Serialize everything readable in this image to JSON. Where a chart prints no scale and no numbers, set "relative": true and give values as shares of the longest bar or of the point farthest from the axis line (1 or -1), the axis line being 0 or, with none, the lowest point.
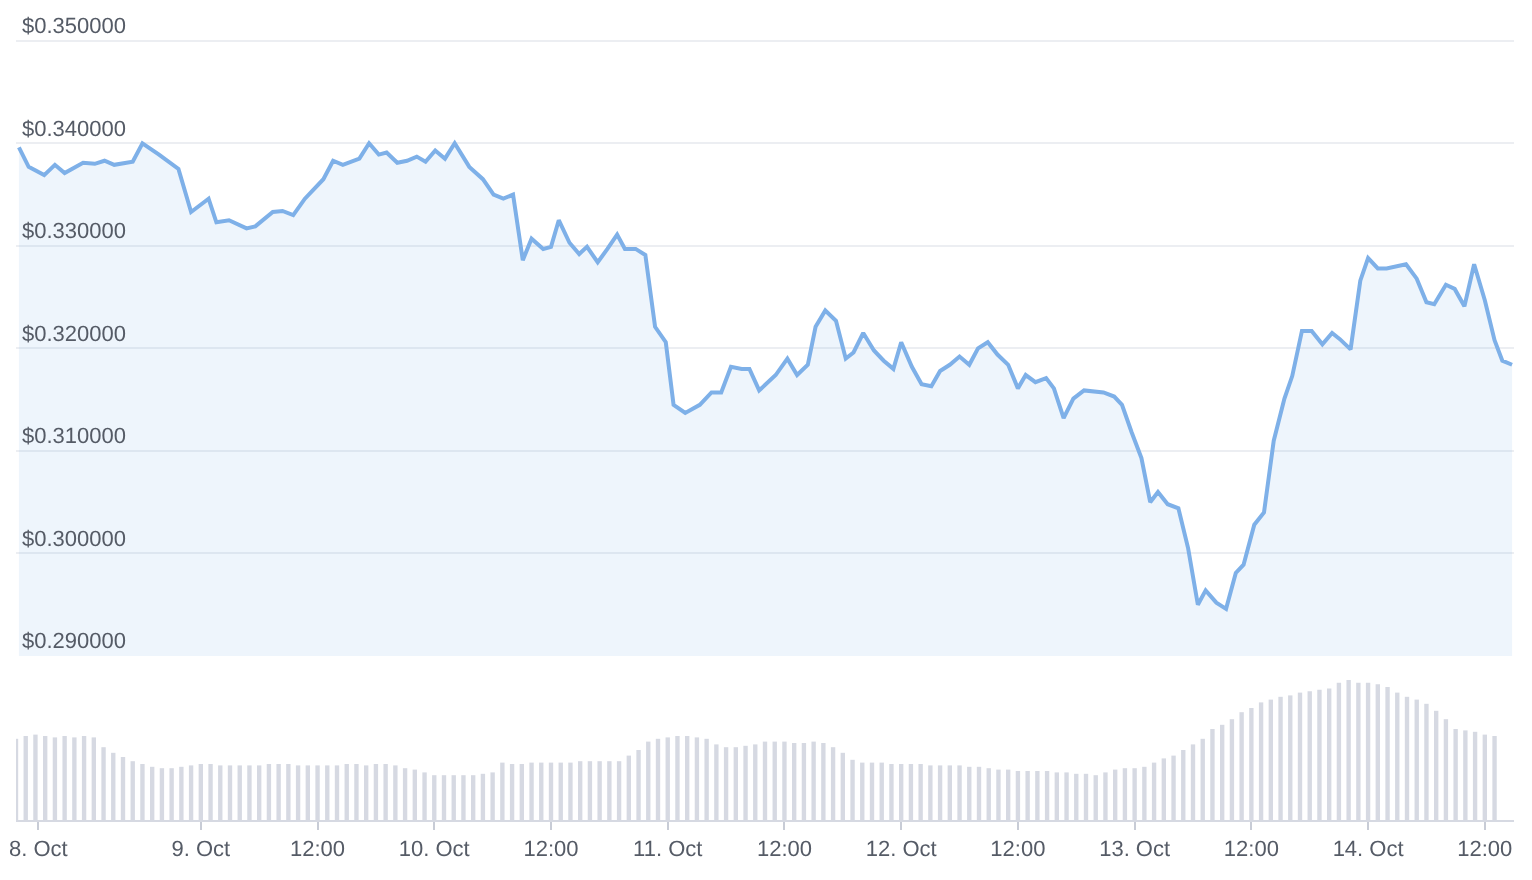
{
  "chart_data": [
    {
      "type": "area",
      "color": "#7eb0e8",
      "grid": "y",
      "tick_labels": "y",
      "x": [
        "--10-08T05:18",
        "--10-08T06:18",
        "--10-08T07:54",
        "--10-08T09:00",
        "--10-08T10:00",
        "--10-08T11:54",
        "--10-08T13:06",
        "--10-08T14:06",
        "--10-08T15:06",
        "--10-08T17:00",
        "--10-08T18:00",
        "--10-08T19:42",
        "--10-08T21:42",
        "--10-08T23:00",
        "--10-09T00:48",
        "--10-09T01:36",
        "--10-09T02:54",
        "--10-09T04:42",
        "--10-09T05:36",
        "--10-09T07:24",
        "--10-09T08:24",
        "--10-09T09:30",
        "--10-09T10:42",
        "--10-09T12:36",
        "--10-09T13:36",
        "--10-09T14:36",
        "--10-09T16:18",
        "--10-09T17:18",
        "--10-09T18:18",
        "--10-09T19:06",
        "--10-09T20:12",
        "--10-09T21:12",
        "--10-09T22:12",
        "--10-09T23:06",
        "--10-10T00:06",
        "--10-10T01:06",
        "--10-10T02:06",
        "--10-10T03:36",
        "--10-10T05:00",
        "--10-10T06:06",
        "--10-10T07:06",
        "--10-10T08:06",
        "--10-10T09:06",
        "--10-10T10:00",
        "--10-10T11:12",
        "--10-10T12:00",
        "--10-10T12:48",
        "--10-10T13:54",
        "--10-10T14:54",
        "--10-10T15:42",
        "--10-10T16:48",
        "--10-10T17:48",
        "--10-10T18:48",
        "--10-10T19:36",
        "--10-10T20:42",
        "--10-10T21:42",
        "--10-10T22:42",
        "--10-10T23:48",
        "--10-11T00:36",
        "--10-11T01:48",
        "--10-11T03:18",
        "--10-11T04:30",
        "--10-11T05:30",
        "--10-11T06:30",
        "--10-11T07:36",
        "--10-11T08:24",
        "--10-11T09:24",
        "--10-11T11:06",
        "--10-11T12:18",
        "--10-11T13:18",
        "--10-11T14:24",
        "--10-11T15:12",
        "--10-11T16:12",
        "--10-11T17:18",
        "--10-11T18:18",
        "--10-11T19:06",
        "--10-11T20:06",
        "--10-11T21:12",
        "--10-11T22:12",
        "--10-11T23:12",
        "--10-12T00:00",
        "--10-12T01:06",
        "--10-12T02:06",
        "--10-12T03:06",
        "--10-12T04:00",
        "--10-12T05:00",
        "--10-12T06:00",
        "--10-12T07:00",
        "--10-12T07:54",
        "--10-12T08:54",
        "--10-12T09:54",
        "--10-12T11:00",
        "--10-12T12:00",
        "--10-12T12:48",
        "--10-12T13:48",
        "--10-12T14:54",
        "--10-12T15:42",
        "--10-12T16:42",
        "--10-12T17:42",
        "--10-12T18:48",
        "--10-12T20:48",
        "--10-12T21:54",
        "--10-12T22:42",
        "--10-12T23:42",
        "--10-13T00:42",
        "--10-13T01:36",
        "--10-13T02:24",
        "--10-13T03:24",
        "--10-13T04:30",
        "--10-13T05:30",
        "--10-13T06:30",
        "--10-13T07:18",
        "--10-13T08:24",
        "--10-13T09:24",
        "--10-13T10:24",
        "--10-13T11:12",
        "--10-13T12:18",
        "--10-13T13:18",
        "--10-13T14:18",
        "--10-13T15:24",
        "--10-13T16:12",
        "--10-13T17:12",
        "--10-13T18:12",
        "--10-13T19:18",
        "--10-13T20:18",
        "--10-13T21:06",
        "--10-13T22:12",
        "--10-13T23:12",
        "--10-14T00:00",
        "--10-14T01:00",
        "--10-14T01:54",
        "--10-14T03:54",
        "--10-14T05:00",
        "--10-14T06:00",
        "--10-14T06:48",
        "--10-14T08:00",
        "--10-14T08:54",
        "--10-14T09:54",
        "--10-14T10:54",
        "--10-14T12:00",
        "--10-14T13:00",
        "--10-14T13:48",
        "--10-14T14:48"
      ],
      "values": [
        0.3396,
        0.3377,
        0.3369,
        0.3379,
        0.3371,
        0.3381,
        0.338,
        0.3383,
        0.3379,
        0.3382,
        0.34,
        0.3389,
        0.3375,
        0.3333,
        0.3346,
        0.3323,
        0.3325,
        0.3317,
        0.3319,
        0.3333,
        0.3334,
        0.333,
        0.3346,
        0.3365,
        0.3383,
        0.3379,
        0.3385,
        0.34,
        0.3389,
        0.3391,
        0.3381,
        0.3383,
        0.3387,
        0.3382,
        0.3393,
        0.3385,
        0.34,
        0.3377,
        0.3365,
        0.335,
        0.3346,
        0.335,
        0.3286,
        0.3307,
        0.3297,
        0.3299,
        0.3325,
        0.3303,
        0.3292,
        0.3299,
        0.3284,
        0.3297,
        0.3311,
        0.3297,
        0.3297,
        0.3291,
        0.3221,
        0.3206,
        0.3145,
        0.3137,
        0.3145,
        0.3157,
        0.3157,
        0.3182,
        0.318,
        0.318,
        0.3159,
        0.3174,
        0.319,
        0.3174,
        0.3184,
        0.3221,
        0.3237,
        0.3227,
        0.319,
        0.3196,
        0.3215,
        0.3198,
        0.3188,
        0.318,
        0.3206,
        0.3182,
        0.3165,
        0.3163,
        0.3178,
        0.3184,
        0.3192,
        0.3184,
        0.32,
        0.3206,
        0.3194,
        0.3184,
        0.3161,
        0.3174,
        0.3167,
        0.3171,
        0.3161,
        0.3132,
        0.3151,
        0.3159,
        0.3157,
        0.3153,
        0.3145,
        0.3118,
        0.3093,
        0.305,
        0.306,
        0.3048,
        0.3044,
        0.3005,
        0.295,
        0.2964,
        0.2952,
        0.2946,
        0.2981,
        0.2989,
        0.3028,
        0.304,
        0.311,
        0.3151,
        0.3173,
        0.3217,
        0.3217,
        0.3204,
        0.3215,
        0.3209,
        0.3199,
        0.3266,
        0.3288,
        0.3278,
        0.3278,
        0.3282,
        0.3268,
        0.3245,
        0.3243,
        0.3262,
        0.3258,
        0.3241,
        0.3282,
        0.3247,
        0.3208,
        0.3188,
        0.3184
      ],
      "xlim": [
        "--10-08T05:00",
        "--10-14T15:00"
      ],
      "xticks": [
        {
          "value": "--10-08T07:18",
          "label": "8. Oct"
        },
        {
          "value": "--10-09",
          "label": "9. Oct"
        },
        {
          "value": "--10-09T12:00",
          "label": "12:00"
        },
        {
          "value": "--10-10",
          "label": "10. Oct"
        },
        {
          "value": "--10-10T12:00",
          "label": "12:00"
        },
        {
          "value": "--10-11",
          "label": "11. Oct"
        },
        {
          "value": "--10-11T12:00",
          "label": "12:00"
        },
        {
          "value": "--10-12",
          "label": "12. Oct"
        },
        {
          "value": "--10-12T12:00",
          "label": "12:00"
        },
        {
          "value": "--10-13",
          "label": "13. Oct"
        },
        {
          "value": "--10-13T12:00",
          "label": "12:00"
        },
        {
          "value": "--10-14",
          "label": "14. Oct"
        },
        {
          "value": "--10-14T12:00",
          "label": "12:00"
        }
      ],
      "ylim": [
        0.29,
        0.353
      ],
      "yticks": [
        {
          "value": 0.29,
          "label": "$0.290000"
        },
        {
          "value": 0.3,
          "label": "$0.300000"
        },
        {
          "value": 0.31,
          "label": "$0.310000"
        },
        {
          "value": 0.32,
          "label": "$0.320000"
        },
        {
          "value": 0.33,
          "label": "$0.330000"
        },
        {
          "value": 0.34,
          "label": "$0.340000"
        },
        {
          "value": 0.35,
          "label": "$0.350000"
        }
      ]
    },
    {
      "type": "bar",
      "relative": true,
      "color": "#d6d9e2",
      "tick_labels": "x",
      "x": [
        "--10-08T05:00",
        "--10-08T06:00",
        "--10-08T07:00",
        "--10-08T08:00",
        "--10-08T09:00",
        "--10-08T10:00",
        "--10-08T11:00",
        "--10-08T12:00",
        "--10-08T13:00",
        "--10-08T14:00",
        "--10-08T15:00",
        "--10-08T16:00",
        "--10-08T17:00",
        "--10-08T18:00",
        "--10-08T19:00",
        "--10-08T20:00",
        "--10-08T21:00",
        "--10-08T22:00",
        "--10-08T23:00",
        "--10-09T00:00",
        "--10-09T01:00",
        "--10-09T02:00",
        "--10-09T03:00",
        "--10-09T04:00",
        "--10-09T05:00",
        "--10-09T06:00",
        "--10-09T07:00",
        "--10-09T08:00",
        "--10-09T09:00",
        "--10-09T10:00",
        "--10-09T11:00",
        "--10-09T12:00",
        "--10-09T13:00",
        "--10-09T14:00",
        "--10-09T15:00",
        "--10-09T16:00",
        "--10-09T17:00",
        "--10-09T18:00",
        "--10-09T19:00",
        "--10-09T20:00",
        "--10-09T21:00",
        "--10-09T22:00",
        "--10-09T23:00",
        "--10-10T00:00",
        "--10-10T01:00",
        "--10-10T02:00",
        "--10-10T03:00",
        "--10-10T04:00",
        "--10-10T05:00",
        "--10-10T06:00",
        "--10-10T07:00",
        "--10-10T08:00",
        "--10-10T09:00",
        "--10-10T10:00",
        "--10-10T11:00",
        "--10-10T12:00",
        "--10-10T13:00",
        "--10-10T14:00",
        "--10-10T15:00",
        "--10-10T16:00",
        "--10-10T17:00",
        "--10-10T18:00",
        "--10-10T19:00",
        "--10-10T20:00",
        "--10-10T21:00",
        "--10-10T22:00",
        "--10-10T23:00",
        "--10-11T00:00",
        "--10-11T01:00",
        "--10-11T02:00",
        "--10-11T03:00",
        "--10-11T04:00",
        "--10-11T05:00",
        "--10-11T06:00",
        "--10-11T07:00",
        "--10-11T08:00",
        "--10-11T09:00",
        "--10-11T10:00",
        "--10-11T11:00",
        "--10-11T12:00",
        "--10-11T13:00",
        "--10-11T14:00",
        "--10-11T15:00",
        "--10-11T16:00",
        "--10-11T17:00",
        "--10-11T18:00",
        "--10-11T19:00",
        "--10-11T20:00",
        "--10-11T21:00",
        "--10-11T22:00",
        "--10-11T23:00",
        "--10-12T00:00",
        "--10-12T01:00",
        "--10-12T02:00",
        "--10-12T03:00",
        "--10-12T04:00",
        "--10-12T05:00",
        "--10-12T06:00",
        "--10-12T07:00",
        "--10-12T08:00",
        "--10-12T09:00",
        "--10-12T10:00",
        "--10-12T11:00",
        "--10-12T12:00",
        "--10-12T13:00",
        "--10-12T14:00",
        "--10-12T15:00",
        "--10-12T16:00",
        "--10-12T17:00",
        "--10-12T18:00",
        "--10-12T19:00",
        "--10-12T20:00",
        "--10-12T21:00",
        "--10-12T22:00",
        "--10-12T23:00",
        "--10-13T00:00",
        "--10-13T01:00",
        "--10-13T02:00",
        "--10-13T03:00",
        "--10-13T04:00",
        "--10-13T05:00",
        "--10-13T06:00",
        "--10-13T07:00",
        "--10-13T08:00",
        "--10-13T09:00",
        "--10-13T10:00",
        "--10-13T11:00",
        "--10-13T12:00",
        "--10-13T13:00",
        "--10-13T14:00",
        "--10-13T15:00",
        "--10-13T16:00",
        "--10-13T17:00",
        "--10-13T18:00",
        "--10-13T19:00",
        "--10-13T20:00",
        "--10-13T21:00",
        "--10-13T22:00",
        "--10-13T23:00",
        "--10-14T00:00",
        "--10-14T01:00",
        "--10-14T02:00",
        "--10-14T03:00",
        "--10-14T04:00",
        "--10-14T05:00",
        "--10-14T06:00",
        "--10-14T07:00",
        "--10-14T08:00",
        "--10-14T09:00",
        "--10-14T10:00",
        "--10-14T11:00",
        "--10-14T12:00",
        "--10-14T13:00"
      ],
      "values": [
        0.58,
        0.6,
        0.61,
        0.6,
        0.59,
        0.6,
        0.59,
        0.6,
        0.59,
        0.52,
        0.48,
        0.45,
        0.42,
        0.4,
        0.38,
        0.37,
        0.37,
        0.38,
        0.39,
        0.4,
        0.4,
        0.39,
        0.39,
        0.39,
        0.39,
        0.39,
        0.4,
        0.4,
        0.4,
        0.39,
        0.39,
        0.39,
        0.39,
        0.39,
        0.4,
        0.4,
        0.39,
        0.4,
        0.4,
        0.39,
        0.37,
        0.36,
        0.34,
        0.32,
        0.32,
        0.32,
        0.32,
        0.32,
        0.33,
        0.34,
        0.41,
        0.4,
        0.4,
        0.41,
        0.41,
        0.41,
        0.41,
        0.41,
        0.42,
        0.42,
        0.42,
        0.42,
        0.42,
        0.46,
        0.5,
        0.56,
        0.58,
        0.59,
        0.6,
        0.6,
        0.59,
        0.58,
        0.54,
        0.52,
        0.52,
        0.53,
        0.54,
        0.56,
        0.56,
        0.56,
        0.55,
        0.55,
        0.56,
        0.55,
        0.52,
        0.48,
        0.43,
        0.41,
        0.41,
        0.41,
        0.4,
        0.4,
        0.4,
        0.4,
        0.39,
        0.39,
        0.39,
        0.39,
        0.38,
        0.38,
        0.37,
        0.36,
        0.36,
        0.35,
        0.35,
        0.35,
        0.35,
        0.34,
        0.34,
        0.33,
        0.33,
        0.32,
        0.34,
        0.36,
        0.37,
        0.37,
        0.38,
        0.41,
        0.44,
        0.46,
        0.5,
        0.54,
        0.58,
        0.65,
        0.68,
        0.72,
        0.77,
        0.8,
        0.84,
        0.86,
        0.88,
        0.89,
        0.91,
        0.92,
        0.93,
        0.94,
        0.98,
        1.0,
        0.98,
        0.98,
        0.97,
        0.95,
        0.91,
        0.88,
        0.86,
        0.83,
        0.78,
        0.72,
        0.65,
        0.64,
        0.63,
        0.61,
        0.6
      ],
      "xlim": [
        "--10-08T05:00",
        "--10-14T15:00"
      ],
      "xticks": [
        {
          "value": "--10-08T07:18",
          "label": "8. Oct"
        },
        {
          "value": "--10-09",
          "label": "9. Oct"
        },
        {
          "value": "--10-09T12:00",
          "label": "12:00"
        },
        {
          "value": "--10-10",
          "label": "10. Oct"
        },
        {
          "value": "--10-10T12:00",
          "label": "12:00"
        },
        {
          "value": "--10-11",
          "label": "11. Oct"
        },
        {
          "value": "--10-11T12:00",
          "label": "12:00"
        },
        {
          "value": "--10-12",
          "label": "12. Oct"
        },
        {
          "value": "--10-12T12:00",
          "label": "12:00"
        },
        {
          "value": "--10-13",
          "label": "13. Oct"
        },
        {
          "value": "--10-13T12:00",
          "label": "12:00"
        },
        {
          "value": "--10-14",
          "label": "14. Oct"
        },
        {
          "value": "--10-14T12:00",
          "label": "12:00"
        }
      ]
    }
  ]
}
